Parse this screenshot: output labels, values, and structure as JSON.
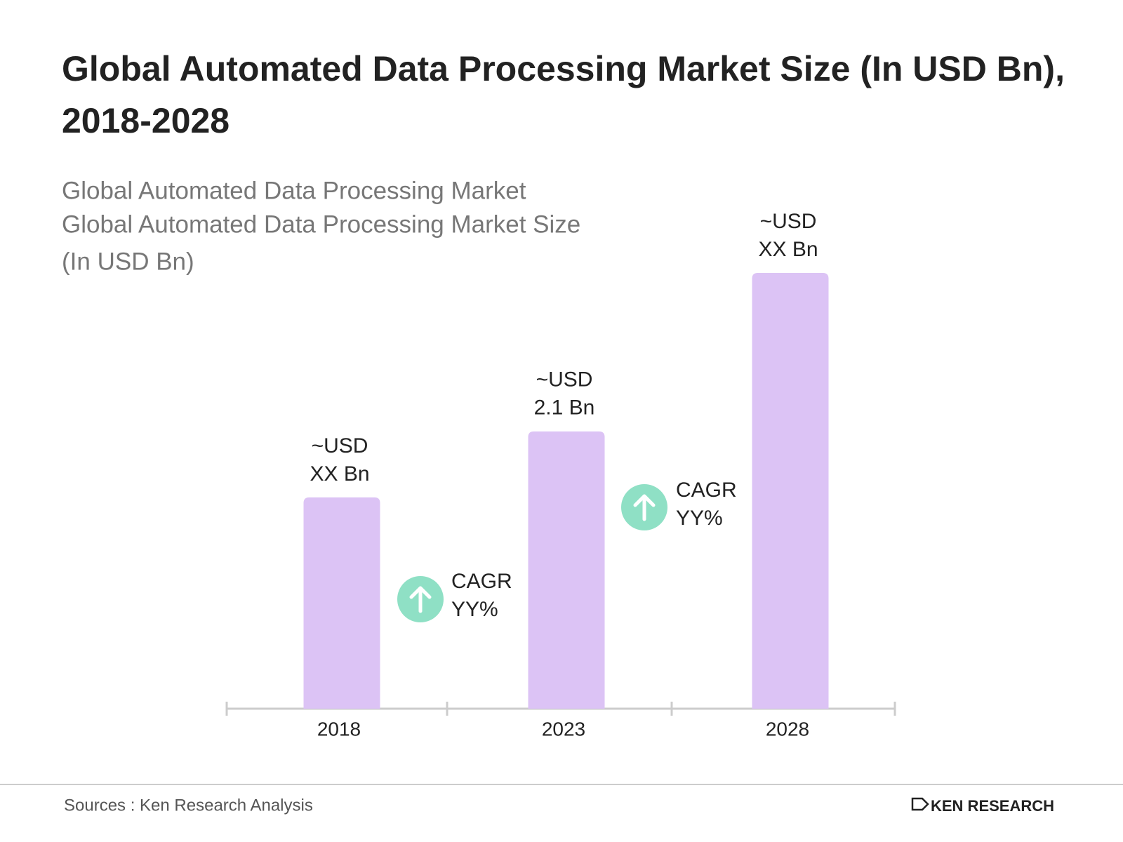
{
  "chart_data": {
    "type": "bar",
    "title": [
      "Global Automated Data Processing Market Size (In USD Bn),",
      "2018-2028"
    ],
    "subtitle": [
      "Global Automated Data Processing Market",
      "Global Automated Data Processing Market  Size",
      "(In USD Bn)"
    ],
    "categories": [
      "2018",
      "2023",
      "2028"
    ],
    "values": [
      1.6,
      2.1,
      3.3
    ],
    "value_labels": [
      [
        "~USD",
        "XX Bn"
      ],
      [
        "~USD",
        "2.1 Bn"
      ],
      [
        "~USD",
        "XX Bn"
      ]
    ],
    "color": "#dcc3f5",
    "annotations": [
      [
        "CAGR",
        "YY%"
      ],
      [
        "CAGR",
        "YY%"
      ]
    ],
    "source": "Sources : Ken Research Analysis",
    "brand": "KEN RESEARCH"
  }
}
